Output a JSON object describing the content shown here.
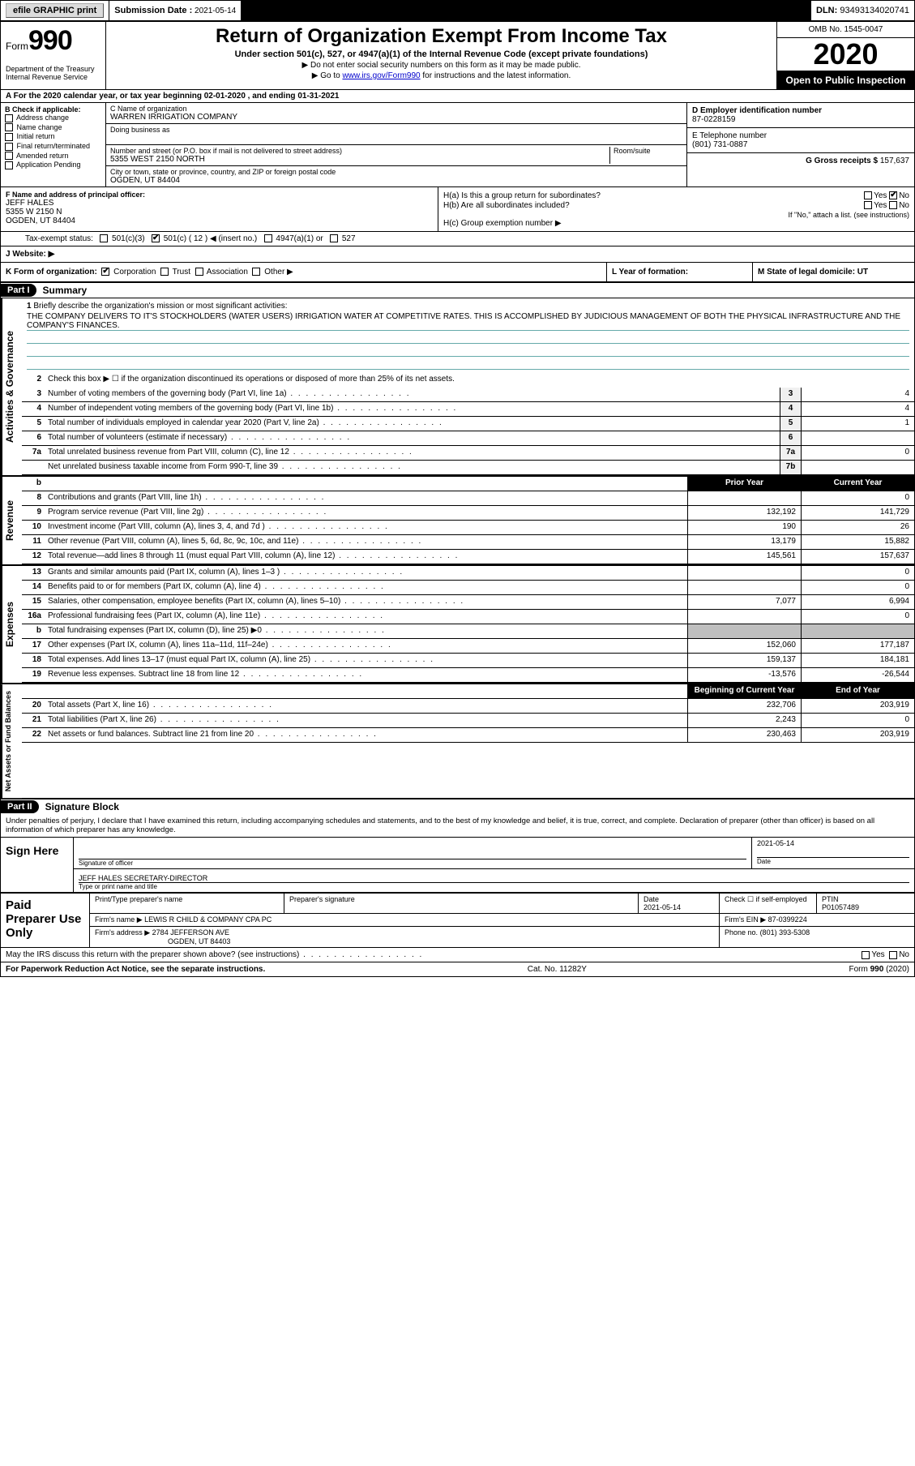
{
  "topbar": {
    "efile": "efile GRAPHIC print",
    "subdate_label": "Submission Date :",
    "subdate": "2021-05-14",
    "dln_label": "DLN:",
    "dln": "93493134020741"
  },
  "header": {
    "form_prefix": "Form",
    "form_no": "990",
    "title": "Return of Organization Exempt From Income Tax",
    "subtitle": "Under section 501(c), 527, or 4947(a)(1) of the Internal Revenue Code (except private foundations)",
    "note1": "▶ Do not enter social security numbers on this form as it may be made public.",
    "note2_pre": "▶ Go to ",
    "note2_link": "www.irs.gov/Form990",
    "note2_post": " for instructions and the latest information.",
    "dept": "Department of the Treasury\nInternal Revenue Service",
    "omb": "OMB No. 1545-0047",
    "year": "2020",
    "otp": "Open to Public Inspection"
  },
  "row_a": "A For the 2020 calendar year, or tax year beginning 02-01-2020   , and ending 01-31-2021",
  "col_b": {
    "label": "B Check if applicable:",
    "items": [
      "Address change",
      "Name change",
      "Initial return",
      "Final return/terminated",
      "Amended return",
      "Application Pending"
    ]
  },
  "col_c": {
    "name_label": "C Name of organization",
    "name": "WARREN IRRIGATION COMPANY",
    "dba_label": "Doing business as",
    "dba": "",
    "street_label": "Number and street (or P.O. box if mail is not delivered to street address)",
    "room_label": "Room/suite",
    "street": "5355 WEST 2150 NORTH",
    "city_label": "City or town, state or province, country, and ZIP or foreign postal code",
    "city": "OGDEN, UT  84404"
  },
  "col_d": {
    "label": "D Employer identification number",
    "value": "87-0228159"
  },
  "col_e": {
    "label": "E Telephone number",
    "value": "(801) 731-0887"
  },
  "col_g": {
    "label": "G Gross receipts $",
    "value": "157,637"
  },
  "col_f": {
    "label": "F  Name and address of principal officer:",
    "name": "JEFF HALES",
    "addr1": "5355 W 2150 N",
    "addr2": "OGDEN, UT  84404"
  },
  "col_h": {
    "ha": "H(a)  Is this a group return for subordinates?",
    "ha_yes": "Yes",
    "ha_no": "No",
    "hb": "H(b)  Are all subordinates included?",
    "hb_yes": "Yes",
    "hb_no": "No",
    "hb_note": "If \"No,\" attach a list. (see instructions)",
    "hc": "H(c)  Group exemption number ▶"
  },
  "tax_status": {
    "label": "Tax-exempt status:",
    "o1": "501(c)(3)",
    "o2": "501(c) ( 12 ) ◀ (insert no.)",
    "o3": "4947(a)(1) or",
    "o4": "527"
  },
  "row_j": "J   Website: ▶",
  "row_k": {
    "k": "K Form of organization:",
    "opts": [
      "Corporation",
      "Trust",
      "Association",
      "Other ▶"
    ],
    "l": "L Year of formation:",
    "m": "M State of legal domicile: UT"
  },
  "part1": {
    "label": "Part I",
    "title": "Summary"
  },
  "mission": {
    "num": "1",
    "label": "Briefly describe the organization's mission or most significant activities:",
    "text": "THE COMPANY DELIVERS TO IT'S STOCKHOLDERS (WATER USERS) IRRIGATION WATER AT COMPETITIVE RATES. THIS IS ACCOMPLISHED BY JUDICIOUS MANAGEMENT OF BOTH THE PHYSICAL INFRASTRUCTURE AND THE COMPANY'S FINANCES."
  },
  "line2": "Check this box ▶ ☐  if the organization discontinued its operations or disposed of more than 25% of its net assets.",
  "gov_lines": [
    {
      "n": "3",
      "d": "Number of voting members of the governing body (Part VI, line 1a)",
      "box": "3",
      "v": "4"
    },
    {
      "n": "4",
      "d": "Number of independent voting members of the governing body (Part VI, line 1b)",
      "box": "4",
      "v": "4"
    },
    {
      "n": "5",
      "d": "Total number of individuals employed in calendar year 2020 (Part V, line 2a)",
      "box": "5",
      "v": "1"
    },
    {
      "n": "6",
      "d": "Total number of volunteers (estimate if necessary)",
      "box": "6",
      "v": ""
    },
    {
      "n": "7a",
      "d": "Total unrelated business revenue from Part VIII, column (C), line 12",
      "box": "7a",
      "v": "0"
    },
    {
      "n": "",
      "d": "Net unrelated business taxable income from Form 990-T, line 39",
      "box": "7b",
      "v": ""
    }
  ],
  "col_hdrs": {
    "py": "Prior Year",
    "cy": "Current Year"
  },
  "rev_lines": [
    {
      "n": "8",
      "d": "Contributions and grants (Part VIII, line 1h)",
      "py": "",
      "cy": "0"
    },
    {
      "n": "9",
      "d": "Program service revenue (Part VIII, line 2g)",
      "py": "132,192",
      "cy": "141,729"
    },
    {
      "n": "10",
      "d": "Investment income (Part VIII, column (A), lines 3, 4, and 7d )",
      "py": "190",
      "cy": "26"
    },
    {
      "n": "11",
      "d": "Other revenue (Part VIII, column (A), lines 5, 6d, 8c, 9c, 10c, and 11e)",
      "py": "13,179",
      "cy": "15,882"
    },
    {
      "n": "12",
      "d": "Total revenue—add lines 8 through 11 (must equal Part VIII, column (A), line 12)",
      "py": "145,561",
      "cy": "157,637"
    }
  ],
  "exp_lines": [
    {
      "n": "13",
      "d": "Grants and similar amounts paid (Part IX, column (A), lines 1–3 )",
      "py": "",
      "cy": "0"
    },
    {
      "n": "14",
      "d": "Benefits paid to or for members (Part IX, column (A), line 4)",
      "py": "",
      "cy": "0"
    },
    {
      "n": "15",
      "d": "Salaries, other compensation, employee benefits (Part IX, column (A), lines 5–10)",
      "py": "7,077",
      "cy": "6,994"
    },
    {
      "n": "16a",
      "d": "Professional fundraising fees (Part IX, column (A), line 11e)",
      "py": "",
      "cy": "0"
    },
    {
      "n": "b",
      "d": "Total fundraising expenses (Part IX, column (D), line 25) ▶0",
      "py": "shade",
      "cy": "shade"
    },
    {
      "n": "17",
      "d": "Other expenses (Part IX, column (A), lines 11a–11d, 11f–24e)",
      "py": "152,060",
      "cy": "177,187"
    },
    {
      "n": "18",
      "d": "Total expenses. Add lines 13–17 (must equal Part IX, column (A), line 25)",
      "py": "159,137",
      "cy": "184,181"
    },
    {
      "n": "19",
      "d": "Revenue less expenses. Subtract line 18 from line 12",
      "py": "-13,576",
      "cy": "-26,544"
    }
  ],
  "na_hdrs": {
    "py": "Beginning of Current Year",
    "cy": "End of Year"
  },
  "na_lines": [
    {
      "n": "20",
      "d": "Total assets (Part X, line 16)",
      "py": "232,706",
      "cy": "203,919"
    },
    {
      "n": "21",
      "d": "Total liabilities (Part X, line 26)",
      "py": "2,243",
      "cy": "0"
    },
    {
      "n": "22",
      "d": "Net assets or fund balances. Subtract line 21 from line 20",
      "py": "230,463",
      "cy": "203,919"
    }
  ],
  "part2": {
    "label": "Part II",
    "title": "Signature Block"
  },
  "penalty": "Under penalties of perjury, I declare that I have examined this return, including accompanying schedules and statements, and to the best of my knowledge and belief, it is true, correct, and complete. Declaration of preparer (other than officer) is based on all information of which preparer has any knowledge.",
  "sign": {
    "here": "Sign Here",
    "sig_label": "Signature of officer",
    "date_label": "Date",
    "date": "2021-05-14",
    "name": "JEFF HALES SECRETARY-DIRECTOR",
    "name_label": "Type or print name and title"
  },
  "paid": {
    "left": "Paid Preparer Use Only",
    "h1": "Print/Type preparer's name",
    "h2": "Preparer's signature",
    "h3": "Date",
    "h3v": "2021-05-14",
    "h4": "Check ☐ if self-employed",
    "h5": "PTIN",
    "h5v": "P01057489",
    "firm_label": "Firm's name   ▶",
    "firm": "LEWIS R CHILD & COMPANY CPA PC",
    "ein_label": "Firm's EIN ▶",
    "ein": "87-0399224",
    "addr_label": "Firm's address ▶",
    "addr1": "2784 JEFFERSON AVE",
    "addr2": "OGDEN, UT  84403",
    "phone_label": "Phone no.",
    "phone": "(801) 393-5308"
  },
  "discuss": "May the IRS discuss this return with the preparer shown above? (see instructions)",
  "discuss_yes": "Yes",
  "discuss_no": "No",
  "footer": {
    "left": "For Paperwork Reduction Act Notice, see the separate instructions.",
    "mid": "Cat. No. 11282Y",
    "right": "Form 990 (2020)"
  }
}
